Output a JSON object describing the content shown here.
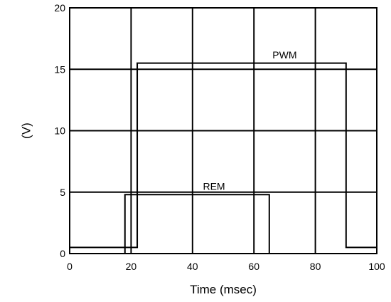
{
  "chart_data": {
    "type": "line",
    "title": "",
    "xlabel": "Time (msec)",
    "ylabel": "(V)",
    "xlim": [
      0,
      100
    ],
    "ylim": [
      0,
      20
    ],
    "x_ticks": [
      0,
      20,
      40,
      60,
      80,
      100
    ],
    "y_ticks": [
      0,
      5,
      10,
      15,
      20
    ],
    "grid": true,
    "legend": "none",
    "series": [
      {
        "name": "PWM",
        "points": [
          [
            0,
            0.5
          ],
          [
            22,
            0.5
          ],
          [
            22,
            15.5
          ],
          [
            90,
            15.5
          ],
          [
            90,
            0.5
          ],
          [
            100,
            0.5
          ]
        ],
        "label_at": [
          70,
          15.6
        ]
      },
      {
        "name": "REM",
        "points": [
          [
            18,
            0
          ],
          [
            18,
            4.8
          ],
          [
            65,
            4.8
          ],
          [
            65,
            0
          ]
        ],
        "label_at": [
          47,
          4.9
        ]
      }
    ]
  }
}
